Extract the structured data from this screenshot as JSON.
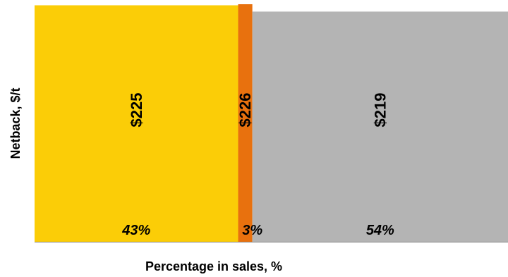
{
  "chart_data": {
    "type": "bar",
    "subtype": "variable-width (marimekko)",
    "xlabel": "Percentage in sales, %",
    "ylabel": "Netback, $/t",
    "series": [
      {
        "value": 225,
        "value_label": "$225",
        "share": 43,
        "share_label": "43%",
        "color": "#FBCD07"
      },
      {
        "value": 226,
        "value_label": "$226",
        "share": 3,
        "share_label": "3%",
        "color": "#E8710E"
      },
      {
        "value": 219,
        "value_label": "$219",
        "share": 54,
        "share_label": "54%",
        "color": "#B4B4B4"
      }
    ],
    "ylim": [
      0,
      226
    ],
    "xlim": [
      0,
      100
    ],
    "grid": false,
    "legend": "none"
  }
}
